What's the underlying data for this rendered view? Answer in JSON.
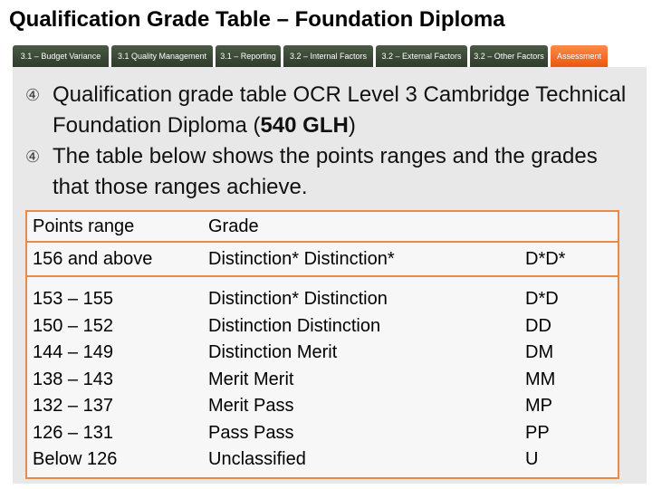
{
  "title": "Qualification Grade Table – Foundation Diploma",
  "nav": [
    {
      "label": "3.1 – Budget Variance",
      "active": false
    },
    {
      "label": "3.1 Quality Management",
      "active": false
    },
    {
      "label": "3.1 – Reporting",
      "active": false
    },
    {
      "label": "3.2 – Internal Factors",
      "active": false
    },
    {
      "label": "3.2 – External Factors",
      "active": false
    },
    {
      "label": "3.2 – Other Factors",
      "active": false
    },
    {
      "label": "Assessment",
      "active": true
    }
  ],
  "colors": {
    "accent": "#e88a4a",
    "nav_bg": "#3a4636",
    "active_tab": "#f26a1e",
    "panel_bg": "#e8e8e8"
  },
  "bullet_icon": "circled-four-icon",
  "bullets": {
    "b1_text_before": "Qualification grade table OCR Level 3 Cambridge Technical Foundation Diploma (",
    "b1_bold": "540 GLH",
    "b1_text_after": ")",
    "b2_text": "The table below shows the points ranges and the grades that those ranges achieve."
  },
  "table": {
    "headers": {
      "points": "Points range",
      "grade": "Grade",
      "code": ""
    },
    "first_row": {
      "points": "156 and above",
      "grade": "Distinction* Distinction*",
      "code": "D*D*"
    },
    "rows": [
      {
        "points": "153 – 155",
        "grade": "Distinction* Distinction",
        "code": "D*D"
      },
      {
        "points": "150 – 152",
        "grade": "Distinction Distinction",
        "code": "DD"
      },
      {
        "points": "144 – 149",
        "grade": "Distinction Merit",
        "code": "DM"
      },
      {
        "points": "138 – 143",
        "grade": "Merit Merit",
        "code": "MM"
      },
      {
        "points": "132 – 137",
        "grade": "Merit Pass",
        "code": "MP"
      },
      {
        "points": "126 – 131",
        "grade": "Pass Pass",
        "code": "PP"
      },
      {
        "points": "Below 126",
        "grade": "Unclassified",
        "code": "U"
      }
    ]
  }
}
